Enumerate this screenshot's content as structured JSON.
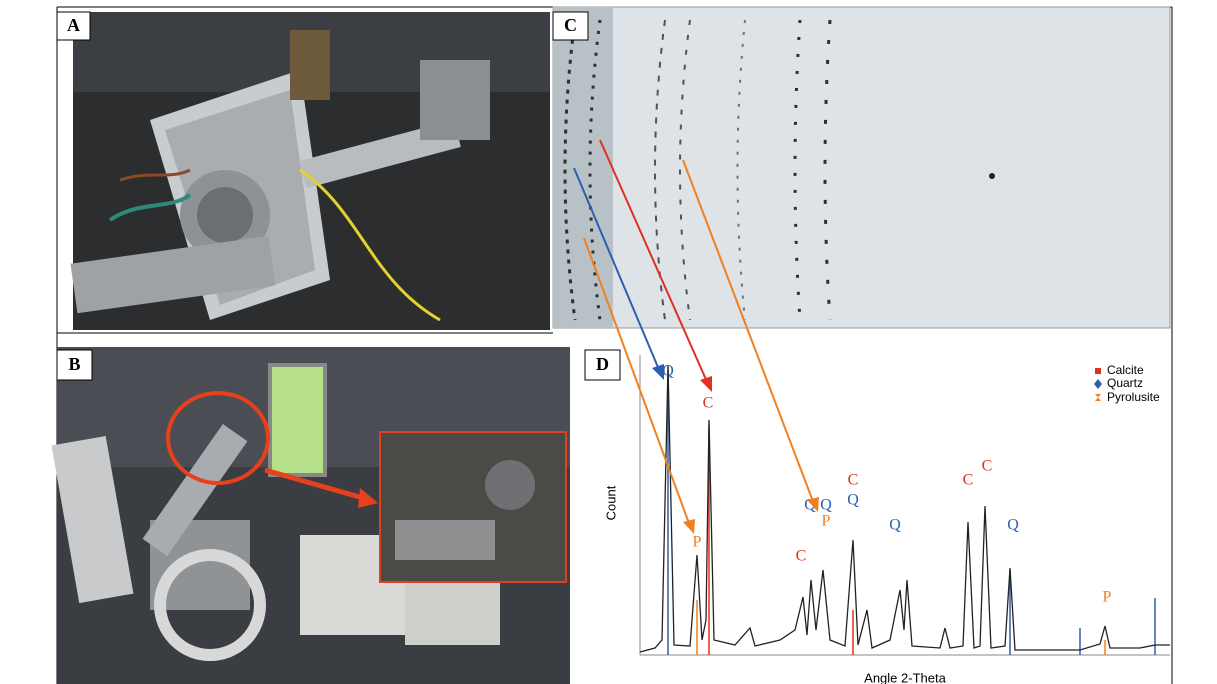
{
  "panels": {
    "a": "A",
    "b": "B",
    "c": "C",
    "d": "D"
  },
  "chart": {
    "y_label": "Count",
    "x_label": "Angle 2-Theta",
    "legend": [
      "Calcite",
      "Quartz",
      "Pyrolusite"
    ],
    "peak_labels": [
      "Q",
      "C",
      "P",
      "C",
      "Q",
      "Q",
      "P",
      "C",
      "Q",
      "Q",
      "C",
      "C",
      "Q",
      "P"
    ]
  }
}
